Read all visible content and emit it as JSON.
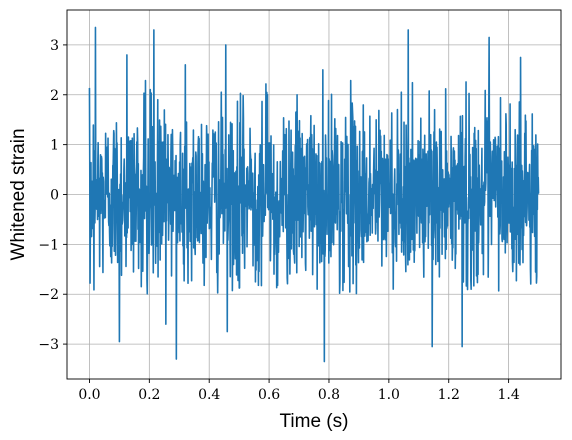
{
  "chart_data": {
    "type": "line",
    "xlabel": "Time (s)",
    "ylabel": "Whitened strain",
    "xlim": [
      -0.075,
      1.575
    ],
    "ylim": [
      -3.7,
      3.7
    ],
    "x_ticks": [
      0.0,
      0.2,
      0.4,
      0.6,
      0.8,
      1.0,
      1.2,
      1.4
    ],
    "x_tick_labels": [
      "0.0",
      "0.2",
      "0.4",
      "0.6",
      "0.8",
      "1.0",
      "1.2",
      "1.4"
    ],
    "y_ticks": [
      -3,
      -2,
      -1,
      0,
      1,
      2,
      3
    ],
    "y_tick_labels": [
      "−3",
      "−2",
      "−1",
      "0",
      "1",
      "2",
      "3"
    ],
    "grid": true,
    "series": [
      {
        "color": "#1f77b4",
        "x_start": 0.0,
        "x_end": 1.5,
        "n_points": 1500,
        "envelope": {
          "sigma": 0.85,
          "typical_max": 2.3,
          "typical_min": -2.0
        },
        "notable_peaks": [
          {
            "x": 0.02,
            "y": 3.35
          },
          {
            "x": 0.215,
            "y": 3.3
          },
          {
            "x": 0.455,
            "y": 3.0
          },
          {
            "x": 1.065,
            "y": 3.3
          },
          {
            "x": 1.335,
            "y": 3.15
          },
          {
            "x": 0.125,
            "y": 2.8
          },
          {
            "x": 0.32,
            "y": 2.6
          },
          {
            "x": 0.78,
            "y": 2.5
          },
          {
            "x": 1.44,
            "y": 2.75
          },
          {
            "x": 0.785,
            "y": -3.35
          },
          {
            "x": 0.29,
            "y": -3.3
          },
          {
            "x": 0.1,
            "y": -2.95
          },
          {
            "x": 1.145,
            "y": -3.05
          },
          {
            "x": 1.245,
            "y": -3.05
          },
          {
            "x": 0.255,
            "y": -2.6
          },
          {
            "x": 0.46,
            "y": -2.75
          }
        ]
      }
    ]
  }
}
